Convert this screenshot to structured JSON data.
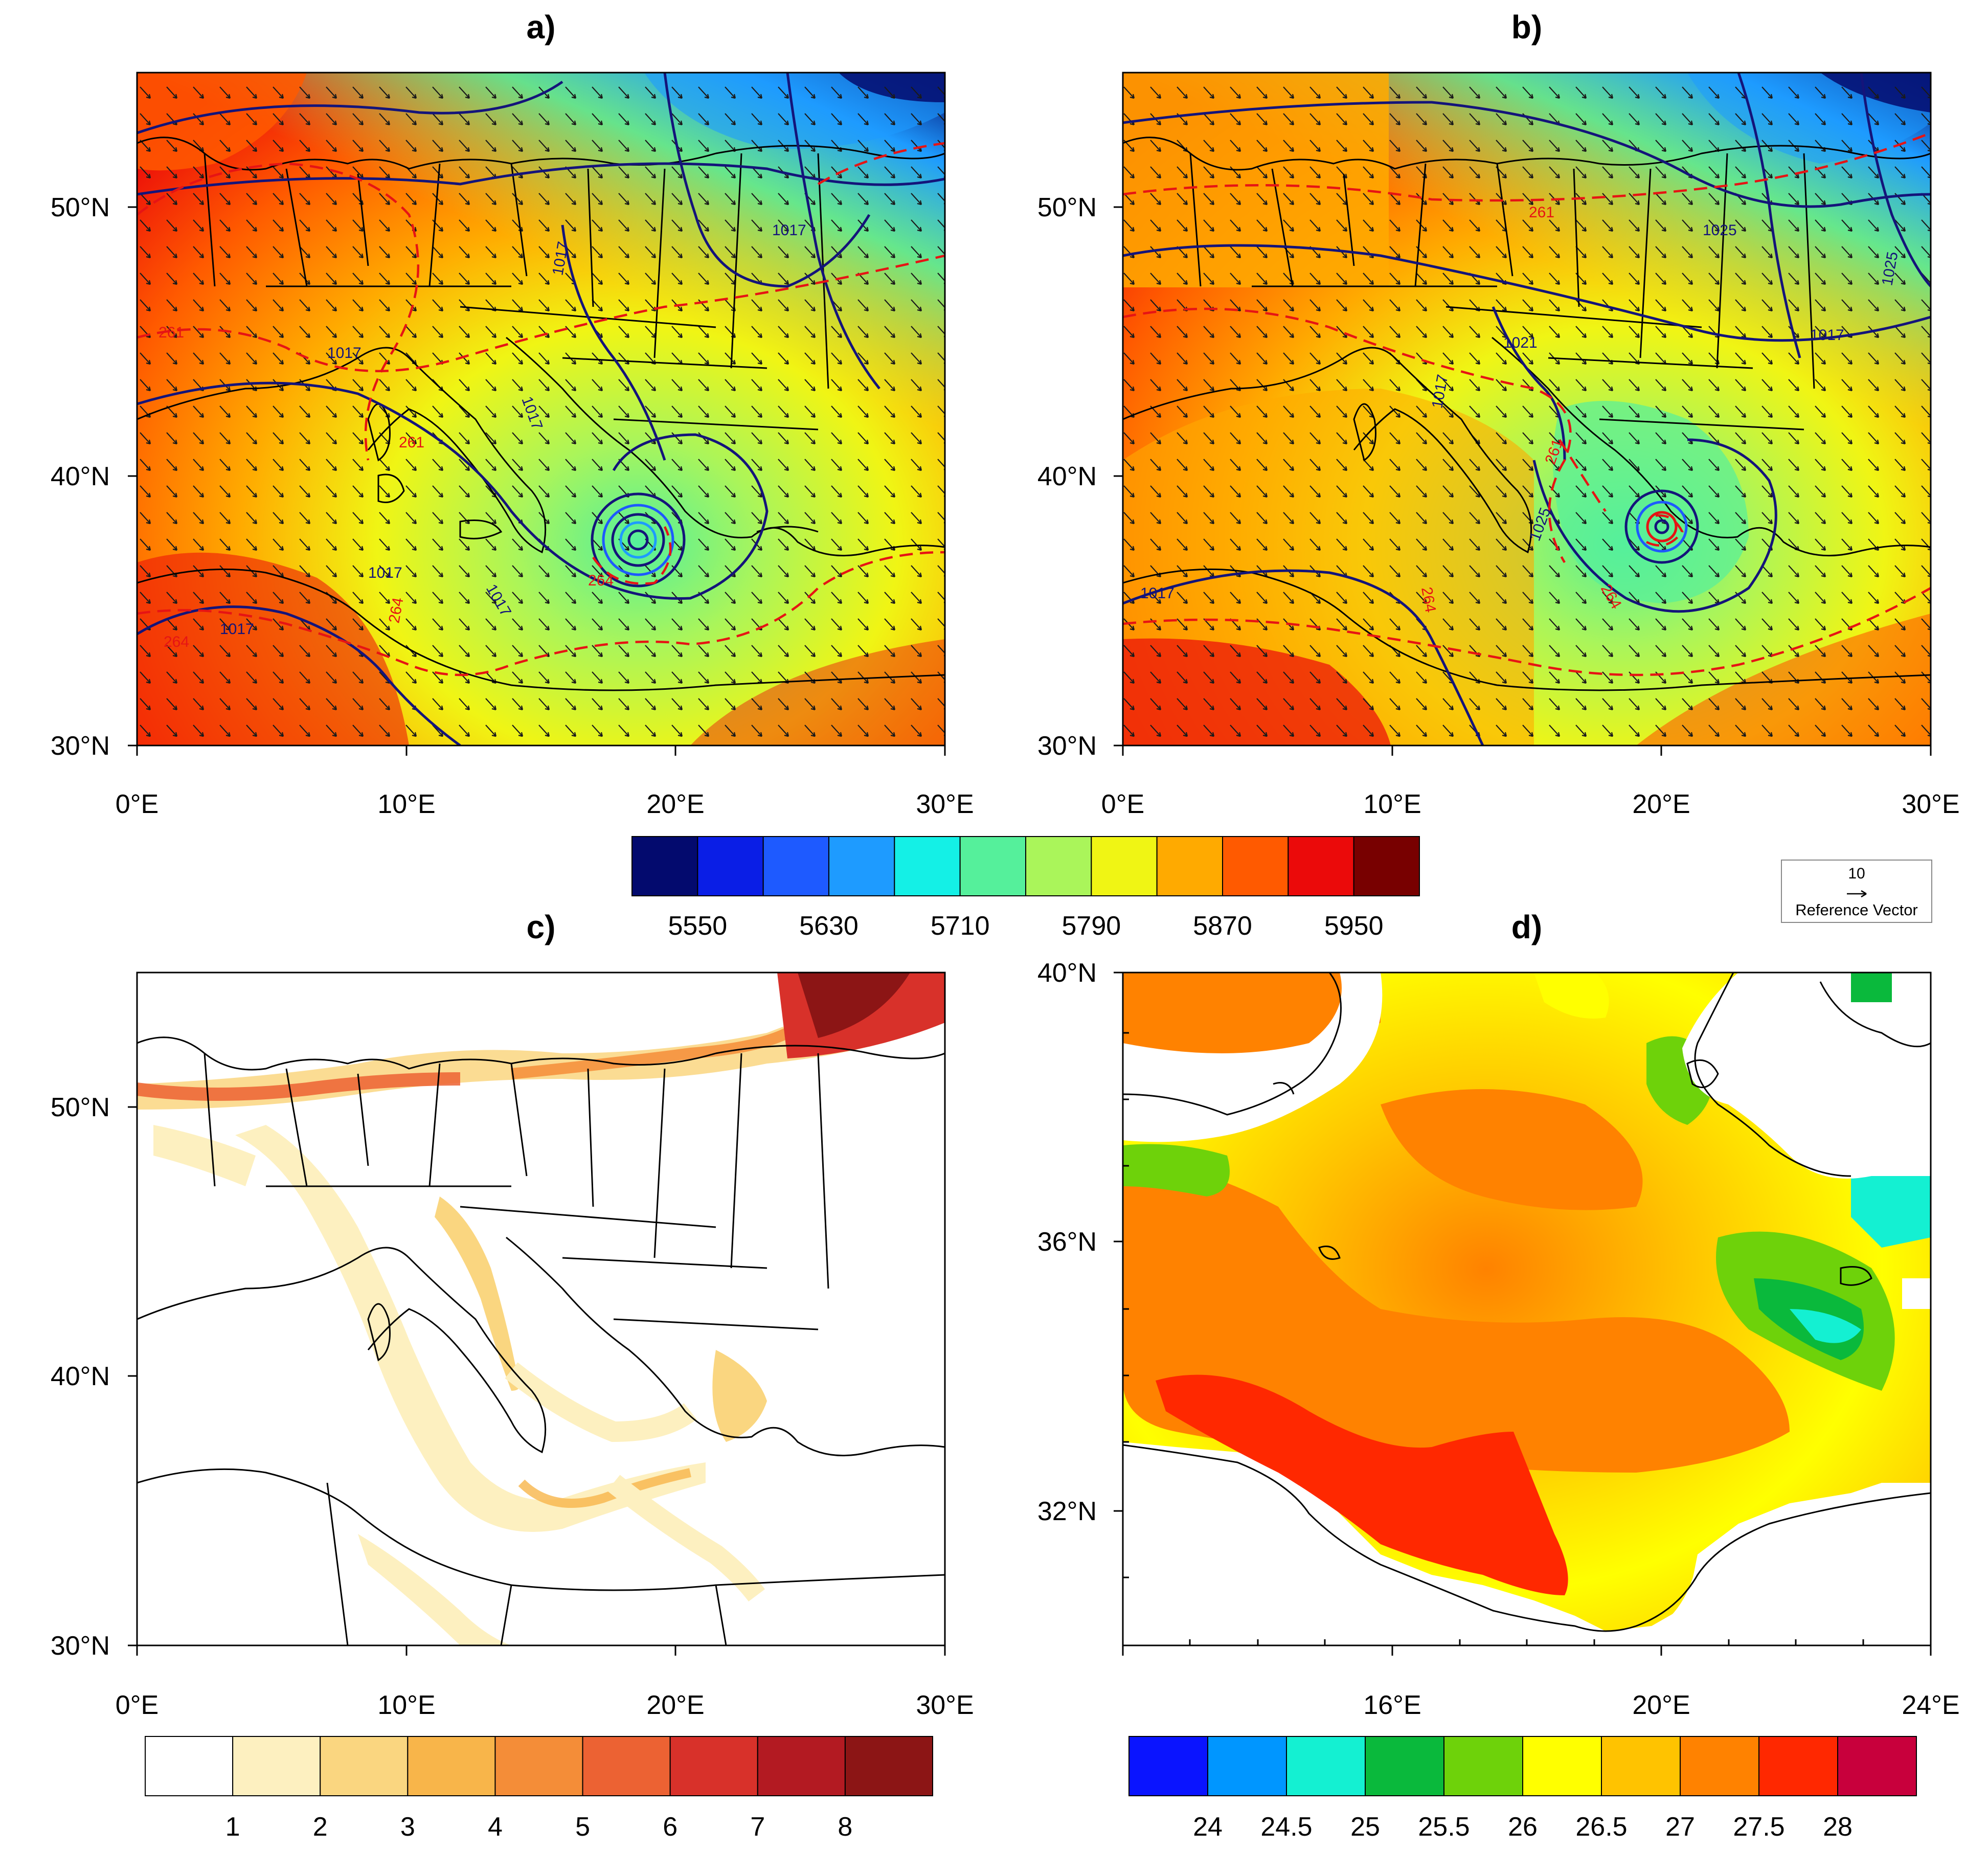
{
  "panels": {
    "a": {
      "label": "a)",
      "lat_ticks": [
        "50°N",
        "40°N",
        "30°N"
      ],
      "lon_ticks": [
        "0°E",
        "10°E",
        "20°E",
        "30°E"
      ],
      "contour_labels": {
        "p1": "1017",
        "p2": "1017",
        "p3": "1017",
        "p4": "1017",
        "p5": "1017",
        "p6": "1017",
        "p7": "1017",
        "t1": "261",
        "t2": "261",
        "t3": "264",
        "t4": "264",
        "t5": "264"
      }
    },
    "b": {
      "label": "b)",
      "lat_ticks": [
        "50°N",
        "40°N",
        "30°N"
      ],
      "lon_ticks": [
        "0°E",
        "10°E",
        "20°E",
        "30°E"
      ],
      "contour_labels": {
        "p1": "1025",
        "p2": "1025",
        "p3": "1017",
        "p4": "1021",
        "p5": "1017",
        "p6": "1017",
        "p7": "1025",
        "t1": "261",
        "t2": "261",
        "t3": "264",
        "t4": "264"
      }
    },
    "c": {
      "label": "c)",
      "lat_ticks": [
        "50°N",
        "40°N",
        "30°N"
      ],
      "lon_ticks": [
        "0°E",
        "10°E",
        "20°E",
        "30°E"
      ]
    },
    "d": {
      "label": "d)",
      "lat_ticks": [
        "40°N",
        "36°N",
        "32°N"
      ],
      "lon_ticks": [
        "16°E",
        "20°E",
        "24°E"
      ]
    }
  },
  "colorbar_geopotential": {
    "colors": [
      "#030a6e",
      "#0a1ee6",
      "#1e5aff",
      "#1e9bff",
      "#14f0e6",
      "#55f09b",
      "#aaf55a",
      "#f0f514",
      "#ffaa00",
      "#ff5a00",
      "#eb0a0a",
      "#780000"
    ],
    "labels": [
      "5550",
      "5630",
      "5710",
      "5790",
      "5870",
      "5950"
    ]
  },
  "reference_vector": {
    "value": "10",
    "label": "Reference Vector"
  },
  "colorbar_precip": {
    "colors": [
      "#ffffff",
      "#fdf0c0",
      "#fad680",
      "#f8b54a",
      "#f48d38",
      "#ec6233",
      "#d8312a",
      "#b31a22",
      "#8c1515"
    ],
    "labels": [
      "1",
      "2",
      "3",
      "4",
      "5",
      "6",
      "7",
      "8"
    ]
  },
  "colorbar_sst": {
    "colors": [
      "#0a14ff",
      "#0096ff",
      "#14f0d2",
      "#0ab93c",
      "#6ed20a",
      "#ffff00",
      "#ffc300",
      "#ff8200",
      "#ff2800",
      "#c8003c"
    ],
    "labels": [
      "24",
      "24.5",
      "25",
      "25.5",
      "26",
      "26.5",
      "27",
      "27.5",
      "28"
    ]
  },
  "coast_color": "#000000",
  "isobar_color": "#14147a",
  "isotherm_color": "#e61414"
}
